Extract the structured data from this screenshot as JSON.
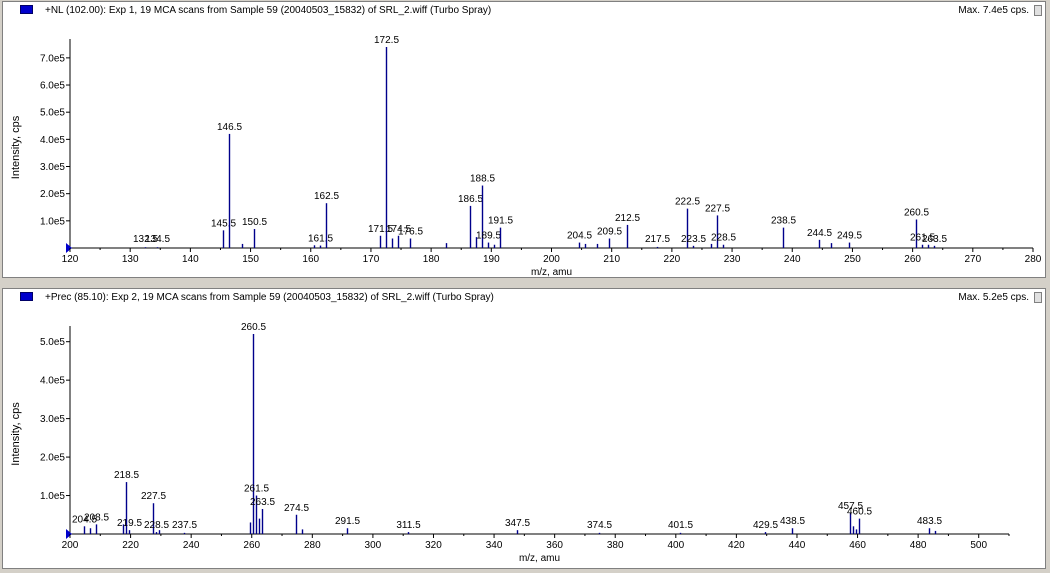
{
  "colors": {
    "peak": "#00008b",
    "axis": "#000000",
    "marker": "#0000cc"
  },
  "panels": [
    {
      "title": "+NL (102.00): Exp 1, 19 MCA scans from Sample 59 (20040503_15832) of SRL_2.wiff (Turbo Spray)",
      "max_label": "Max. 7.4e5 cps."
    },
    {
      "title": "+Prec (85.10): Exp 2, 19 MCA scans from Sample 59 (20040503_15832) of SRL_2.wiff (Turbo Spray)",
      "max_label": "Max. 5.2e5 cps."
    }
  ],
  "chart_data": [
    {
      "type": "bar",
      "xlabel": "m/z, amu",
      "ylabel": "Intensity, cps",
      "xlim": [
        120,
        280
      ],
      "ylim": [
        0,
        740000
      ],
      "x_ticks": [
        "120",
        "130",
        "140",
        "150",
        "160",
        "170",
        "180",
        "190",
        "200",
        "210",
        "220",
        "230",
        "240",
        "250",
        "260",
        "270",
        "280"
      ],
      "y_ticks": [
        {
          "value": 100000,
          "label": "1.0e5"
        },
        {
          "value": 200000,
          "label": "2.0e5"
        },
        {
          "value": 300000,
          "label": "3.0e5"
        },
        {
          "value": 400000,
          "label": "4.0e5"
        },
        {
          "value": 500000,
          "label": "5.0e5"
        },
        {
          "value": 600000,
          "label": "6.0e5"
        },
        {
          "value": 700000,
          "label": "7.0e5"
        }
      ],
      "peaks": [
        {
          "x": 132.5,
          "y": 3000,
          "label": "132.5"
        },
        {
          "x": 134.5,
          "y": 3000,
          "label": "134.5"
        },
        {
          "x": 145.5,
          "y": 65000,
          "label": "145.5"
        },
        {
          "x": 146.5,
          "y": 420000,
          "label": "146.5"
        },
        {
          "x": 150.5,
          "y": 70000,
          "label": "150.5"
        },
        {
          "x": 161.5,
          "y": 9000,
          "label": "161.5"
        },
        {
          "x": 162.5,
          "y": 165000,
          "label": "162.5"
        },
        {
          "x": 171.5,
          "y": 45000,
          "label": "171.5"
        },
        {
          "x": 172.5,
          "y": 740000,
          "label": "172.5"
        },
        {
          "x": 174.5,
          "y": 45000,
          "label": "174.5"
        },
        {
          "x": 176.5,
          "y": 35000,
          "label": "176.5"
        },
        {
          "x": 186.5,
          "y": 155000,
          "label": "186.5"
        },
        {
          "x": 188.5,
          "y": 230000,
          "label": "188.5"
        },
        {
          "x": 189.5,
          "y": 20000,
          "label": "189.5"
        },
        {
          "x": 191.5,
          "y": 75000,
          "label": "191.5"
        },
        {
          "x": 204.5,
          "y": 20000,
          "label": "204.5"
        },
        {
          "x": 209.5,
          "y": 35000,
          "label": "209.5"
        },
        {
          "x": 212.5,
          "y": 85000,
          "label": "212.5"
        },
        {
          "x": 217.5,
          "y": 4000,
          "label": "217.5"
        },
        {
          "x": 222.5,
          "y": 145000,
          "label": "222.5"
        },
        {
          "x": 223.5,
          "y": 8000,
          "label": "223.5"
        },
        {
          "x": 227.5,
          "y": 120000,
          "label": "227.5"
        },
        {
          "x": 228.5,
          "y": 12000,
          "label": "228.5"
        },
        {
          "x": 238.5,
          "y": 75000,
          "label": "238.5"
        },
        {
          "x": 244.5,
          "y": 30000,
          "label": "244.5"
        },
        {
          "x": 249.5,
          "y": 20000,
          "label": "249.5"
        },
        {
          "x": 260.5,
          "y": 105000,
          "label": "260.5"
        },
        {
          "x": 261.5,
          "y": 12000,
          "label": "261.5"
        },
        {
          "x": 263.5,
          "y": 8000,
          "label": "263.5"
        },
        {
          "x": 148.5,
          "y": 15000,
          "label": ""
        },
        {
          "x": 160.5,
          "y": 10000,
          "label": ""
        },
        {
          "x": 173.5,
          "y": 35000,
          "label": ""
        },
        {
          "x": 182.5,
          "y": 18000,
          "label": ""
        },
        {
          "x": 187.5,
          "y": 40000,
          "label": ""
        },
        {
          "x": 190.5,
          "y": 12000,
          "label": ""
        },
        {
          "x": 205.5,
          "y": 15000,
          "label": ""
        },
        {
          "x": 207.5,
          "y": 15000,
          "label": ""
        },
        {
          "x": 226.5,
          "y": 15000,
          "label": ""
        },
        {
          "x": 246.5,
          "y": 18000,
          "label": ""
        },
        {
          "x": 262.5,
          "y": 12000,
          "label": ""
        }
      ]
    },
    {
      "type": "bar",
      "xlabel": "m/z, amu",
      "ylabel": "Intensity, cps",
      "xlim": [
        200,
        510
      ],
      "ylim": [
        0,
        520000
      ],
      "x_ticks": [
        "200",
        "220",
        "240",
        "260",
        "280",
        "300",
        "320",
        "340",
        "360",
        "380",
        "400",
        "420",
        "440",
        "460",
        "480",
        "500"
      ],
      "y_ticks": [
        {
          "value": 100000,
          "label": "1.0e5"
        },
        {
          "value": 200000,
          "label": "2.0e5"
        },
        {
          "value": 300000,
          "label": "3.0e5"
        },
        {
          "value": 400000,
          "label": "4.0e5"
        },
        {
          "value": 500000,
          "label": "5.0e5"
        }
      ],
      "peaks": [
        {
          "x": 204.5,
          "y": 20000,
          "label": "204.5"
        },
        {
          "x": 208.5,
          "y": 25000,
          "label": "208.5"
        },
        {
          "x": 218.5,
          "y": 135000,
          "label": "218.5"
        },
        {
          "x": 219.5,
          "y": 10000,
          "label": "219.5"
        },
        {
          "x": 227.5,
          "y": 80000,
          "label": "227.5"
        },
        {
          "x": 228.5,
          "y": 5000,
          "label": "228.5"
        },
        {
          "x": 237.5,
          "y": 3000,
          "label": "237.5"
        },
        {
          "x": 260.5,
          "y": 520000,
          "label": "260.5"
        },
        {
          "x": 261.5,
          "y": 100000,
          "label": "261.5"
        },
        {
          "x": 263.5,
          "y": 65000,
          "label": "263.5"
        },
        {
          "x": 274.5,
          "y": 50000,
          "label": "274.5"
        },
        {
          "x": 291.5,
          "y": 15000,
          "label": "291.5"
        },
        {
          "x": 311.5,
          "y": 5000,
          "label": "311.5"
        },
        {
          "x": 347.5,
          "y": 10000,
          "label": "347.5"
        },
        {
          "x": 374.5,
          "y": 3000,
          "label": "374.5"
        },
        {
          "x": 401.5,
          "y": 3000,
          "label": "401.5"
        },
        {
          "x": 429.5,
          "y": 5000,
          "label": "429.5"
        },
        {
          "x": 438.5,
          "y": 15000,
          "label": "438.5"
        },
        {
          "x": 457.5,
          "y": 55000,
          "label": "457.5"
        },
        {
          "x": 460.5,
          "y": 40000,
          "label": "460.5"
        },
        {
          "x": 483.5,
          "y": 15000,
          "label": "483.5"
        },
        {
          "x": 206.5,
          "y": 15000,
          "label": ""
        },
        {
          "x": 217.5,
          "y": 25000,
          "label": ""
        },
        {
          "x": 229.5,
          "y": 10000,
          "label": ""
        },
        {
          "x": 259.5,
          "y": 30000,
          "label": ""
        },
        {
          "x": 262.5,
          "y": 40000,
          "label": ""
        },
        {
          "x": 276.5,
          "y": 12000,
          "label": ""
        },
        {
          "x": 458.5,
          "y": 20000,
          "label": ""
        },
        {
          "x": 459.5,
          "y": 12000,
          "label": ""
        },
        {
          "x": 485.5,
          "y": 8000,
          "label": ""
        }
      ]
    }
  ]
}
